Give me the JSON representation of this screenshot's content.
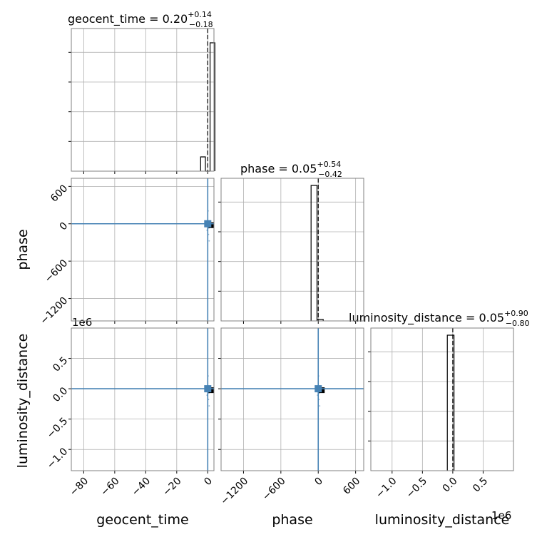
{
  "chart_data": {
    "type": "corner",
    "parameters": [
      "geocent_time",
      "phase",
      "luminosity_distance"
    ],
    "titles": [
      {
        "param": "geocent_time",
        "median": "0.20",
        "plus": "0.14",
        "minus": "0.18"
      },
      {
        "param": "phase",
        "median": "0.05",
        "plus": "0.54",
        "minus": "0.42"
      },
      {
        "param": "luminosity_distance",
        "median": "0.05",
        "plus": "0.90",
        "minus": "0.80"
      }
    ],
    "truths": {
      "geocent_time": 0,
      "phase": 0,
      "luminosity_distance": 0
    },
    "ranges": {
      "geocent_time": [
        -88,
        4
      ],
      "phase": [
        -1560,
        730
      ],
      "luminosity_distance": [
        -1.35,
        1.0
      ]
    },
    "ticks": {
      "geocent_time": [
        -80,
        -60,
        -40,
        -20,
        0
      ],
      "phase": [
        -1200,
        -600,
        0,
        600
      ],
      "luminosity_distance": [
        -1.0,
        -0.5,
        0.0,
        0.5
      ]
    },
    "tick_labels": {
      "geocent_time": [
        "−80",
        "−60",
        "−40",
        "−20",
        "0"
      ],
      "phase": [
        "−1200",
        "−600",
        "0",
        "600"
      ],
      "luminosity_distance": [
        "−1.0",
        "−0.5",
        "0.0",
        "0.5"
      ]
    },
    "offset_text": "1e6",
    "histograms": {
      "geocent_time": {
        "edges": [
          -4.6,
          -1.5,
          1.5,
          4.6
        ],
        "counts": [
          0.1,
          0,
          0.9
        ]
      },
      "phase": {
        "edges": [
          -115,
          -20,
          80
        ],
        "counts": [
          0.95,
          0.01
        ]
      },
      "luminosity_distance": {
        "edges": [
          -0.09,
          0.02
        ],
        "counts": [
          0.95
        ]
      }
    },
    "grid": true,
    "scatter_color": "#4682b4",
    "hist_color": "#000000"
  }
}
